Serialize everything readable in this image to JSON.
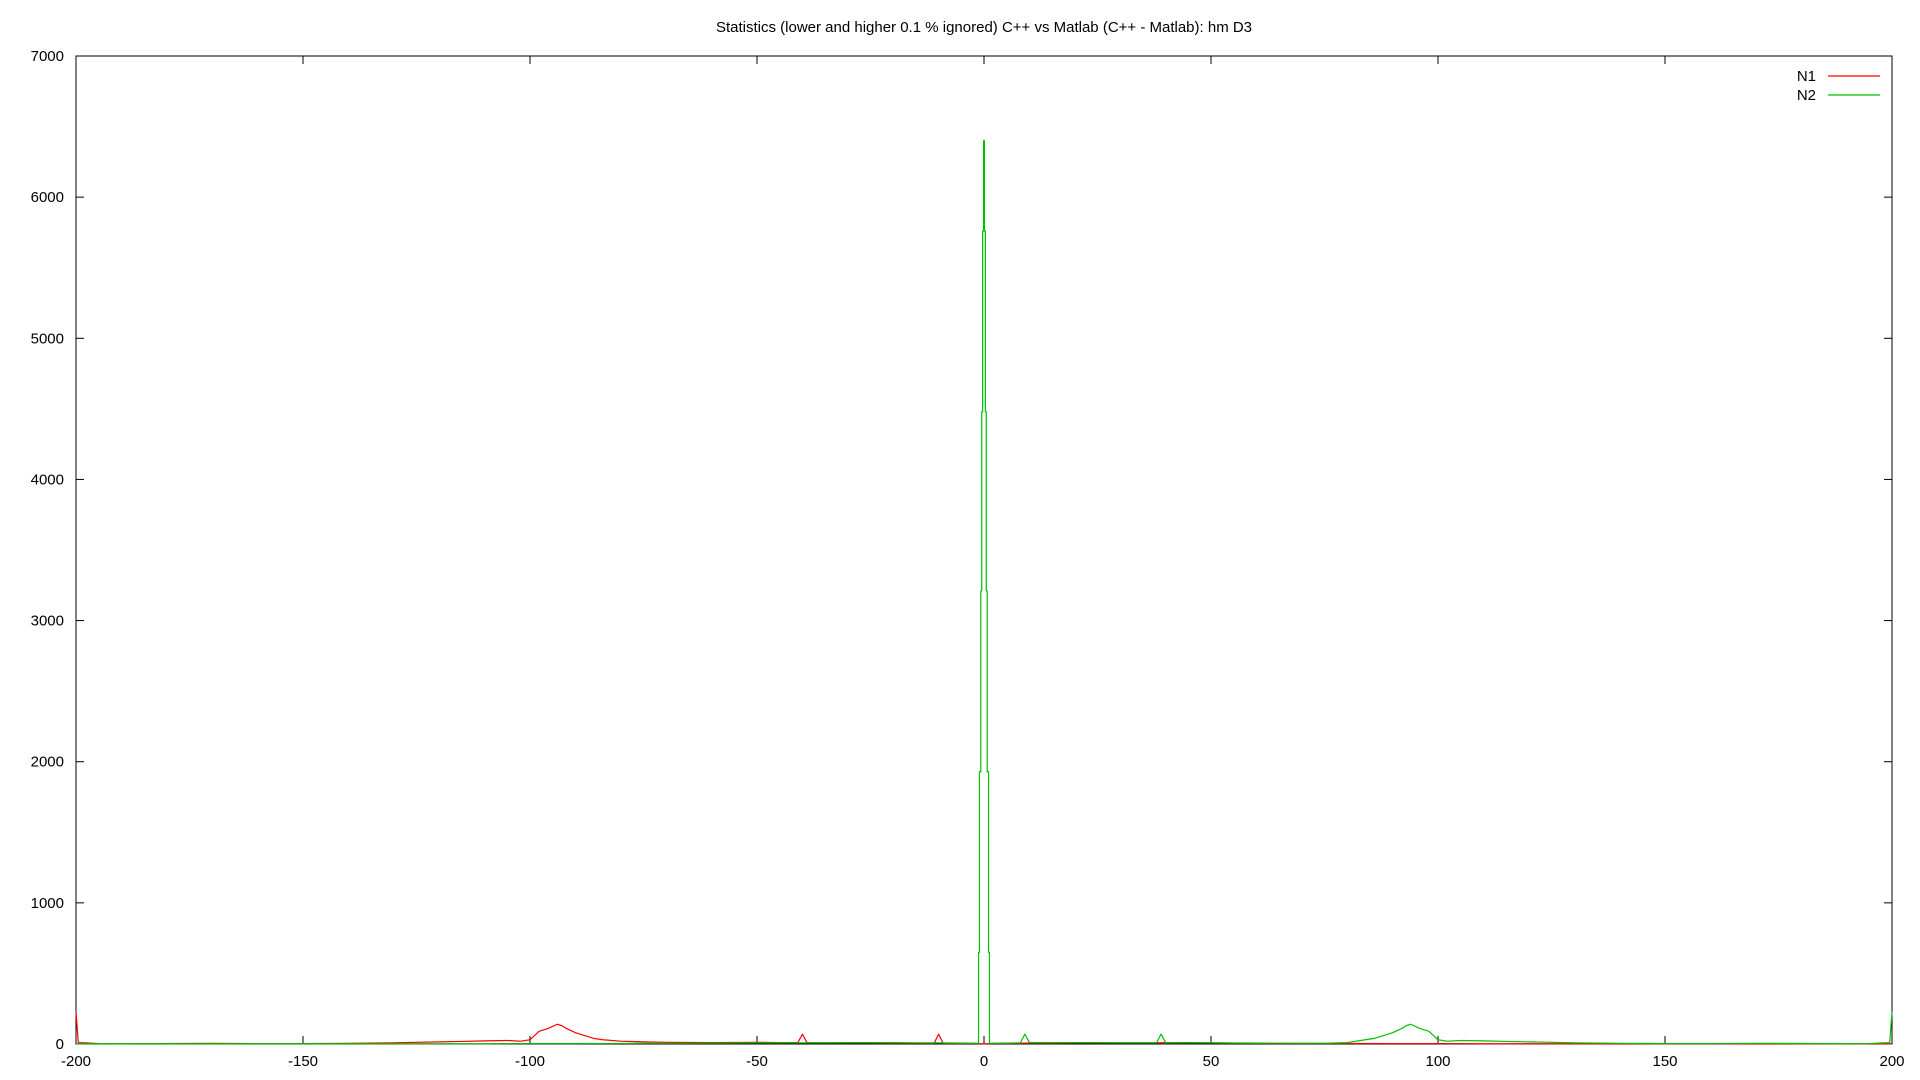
{
  "chart_data": {
    "type": "line",
    "title": "Statistics (lower and higher 0.1 % ignored) C++ vs Matlab (C++ - Matlab): hm D3",
    "xlabel": "",
    "ylabel": "",
    "xlim": [
      -200,
      200
    ],
    "ylim": [
      0,
      7000
    ],
    "xticks": [
      -200,
      -150,
      -100,
      -50,
      0,
      50,
      100,
      150,
      200
    ],
    "xtick_labels": [
      "-200",
      "-150",
      "-100",
      "-50",
      "0",
      "50",
      "100",
      "150",
      "200"
    ],
    "yticks": [
      0,
      1000,
      2000,
      3000,
      4000,
      5000,
      6000,
      7000
    ],
    "ytick_labels": [
      "0",
      "1000",
      "2000",
      "3000",
      "4000",
      "5000",
      "6000",
      "7000"
    ],
    "grid": false,
    "legend_position": "top-right",
    "series": [
      {
        "name": "N1",
        "color": "#ff0000",
        "points": [
          [
            -200,
            230
          ],
          [
            -199.5,
            10
          ],
          [
            -198,
            8
          ],
          [
            -196,
            5
          ],
          [
            -195,
            3
          ],
          [
            -190,
            2
          ],
          [
            -170,
            5
          ],
          [
            -160,
            3
          ],
          [
            -150,
            3
          ],
          [
            -140,
            5
          ],
          [
            -130,
            8
          ],
          [
            -125,
            12
          ],
          [
            -120,
            15
          ],
          [
            -115,
            18
          ],
          [
            -110,
            22
          ],
          [
            -105,
            25
          ],
          [
            -102,
            20
          ],
          [
            -100,
            30
          ],
          [
            -98,
            90
          ],
          [
            -96,
            110
          ],
          [
            -94,
            140
          ],
          [
            -93,
            130
          ],
          [
            -92,
            110
          ],
          [
            -90,
            80
          ],
          [
            -88,
            60
          ],
          [
            -86,
            40
          ],
          [
            -84,
            30
          ],
          [
            -80,
            20
          ],
          [
            -75,
            15
          ],
          [
            -70,
            12
          ],
          [
            -60,
            10
          ],
          [
            -50,
            12
          ],
          [
            -45,
            10
          ],
          [
            -41,
            10
          ],
          [
            -40,
            70
          ],
          [
            -39,
            10
          ],
          [
            -35,
            8
          ],
          [
            -30,
            8
          ],
          [
            -25,
            8
          ],
          [
            -20,
            6
          ],
          [
            -15,
            6
          ],
          [
            -11,
            5
          ],
          [
            -10,
            70
          ],
          [
            -9,
            5
          ],
          [
            -5,
            5
          ],
          [
            -2,
            5
          ],
          [
            -1,
            3
          ],
          [
            0,
            2
          ],
          [
            1,
            3
          ],
          [
            2,
            5
          ],
          [
            5,
            5
          ],
          [
            10,
            6
          ],
          [
            15,
            6
          ],
          [
            20,
            8
          ],
          [
            25,
            8
          ],
          [
            30,
            8
          ],
          [
            35,
            8
          ],
          [
            38,
            8
          ],
          [
            40,
            10
          ],
          [
            45,
            10
          ],
          [
            50,
            8
          ],
          [
            55,
            6
          ],
          [
            60,
            5
          ],
          [
            70,
            5
          ],
          [
            80,
            4
          ],
          [
            90,
            3
          ],
          [
            100,
            3
          ],
          [
            110,
            2
          ],
          [
            120,
            2
          ],
          [
            130,
            2
          ],
          [
            140,
            2
          ],
          [
            150,
            2
          ],
          [
            160,
            2
          ],
          [
            170,
            2
          ],
          [
            180,
            2
          ],
          [
            190,
            2
          ],
          [
            200,
            2
          ]
        ]
      },
      {
        "name": "N2",
        "color": "#00c000",
        "points": [
          [
            -200,
            2
          ],
          [
            -190,
            2
          ],
          [
            -180,
            2
          ],
          [
            -170,
            2
          ],
          [
            -160,
            2
          ],
          [
            -150,
            2
          ],
          [
            -140,
            2
          ],
          [
            -130,
            2
          ],
          [
            -120,
            2
          ],
          [
            -110,
            2
          ],
          [
            -100,
            3
          ],
          [
            -90,
            3
          ],
          [
            -80,
            4
          ],
          [
            -75,
            5
          ],
          [
            -70,
            5
          ],
          [
            -60,
            6
          ],
          [
            -50,
            8
          ],
          [
            -45,
            8
          ],
          [
            -40,
            8
          ],
          [
            -35,
            8
          ],
          [
            -30,
            10
          ],
          [
            -25,
            10
          ],
          [
            -20,
            10
          ],
          [
            -15,
            8
          ],
          [
            -10,
            8
          ],
          [
            -5,
            6
          ],
          [
            -2,
            5
          ],
          [
            -1.2,
            5
          ],
          [
            -1.2,
            650
          ],
          [
            -1,
            650
          ],
          [
            -1,
            1930
          ],
          [
            -0.7,
            1930
          ],
          [
            -0.7,
            3210
          ],
          [
            -0.5,
            3210
          ],
          [
            -0.5,
            4480
          ],
          [
            -0.3,
            4480
          ],
          [
            -0.3,
            5760
          ],
          [
            -0.1,
            5760
          ],
          [
            -0.1,
            6400
          ],
          [
            0.1,
            6400
          ],
          [
            0.1,
            5760
          ],
          [
            0.3,
            5760
          ],
          [
            0.3,
            4480
          ],
          [
            0.5,
            4480
          ],
          [
            0.5,
            3210
          ],
          [
            0.7,
            3210
          ],
          [
            0.7,
            1930
          ],
          [
            1,
            1930
          ],
          [
            1,
            650
          ],
          [
            1.2,
            650
          ],
          [
            1.2,
            5
          ],
          [
            2,
            5
          ],
          [
            5,
            6
          ],
          [
            8,
            8
          ],
          [
            9,
            70
          ],
          [
            10,
            10
          ],
          [
            15,
            10
          ],
          [
            20,
            10
          ],
          [
            25,
            10
          ],
          [
            30,
            8
          ],
          [
            35,
            8
          ],
          [
            38,
            8
          ],
          [
            39,
            70
          ],
          [
            40,
            10
          ],
          [
            45,
            8
          ],
          [
            50,
            8
          ],
          [
            60,
            6
          ],
          [
            70,
            5
          ],
          [
            75,
            5
          ],
          [
            80,
            10
          ],
          [
            84,
            30
          ],
          [
            86,
            40
          ],
          [
            88,
            60
          ],
          [
            90,
            80
          ],
          [
            92,
            110
          ],
          [
            93,
            130
          ],
          [
            94,
            140
          ],
          [
            96,
            110
          ],
          [
            98,
            90
          ],
          [
            100,
            30
          ],
          [
            102,
            20
          ],
          [
            105,
            25
          ],
          [
            110,
            22
          ],
          [
            115,
            18
          ],
          [
            120,
            15
          ],
          [
            125,
            12
          ],
          [
            130,
            8
          ],
          [
            140,
            5
          ],
          [
            150,
            3
          ],
          [
            160,
            3
          ],
          [
            170,
            5
          ],
          [
            190,
            2
          ],
          [
            195,
            3
          ],
          [
            196,
            5
          ],
          [
            198,
            8
          ],
          [
            199.5,
            10
          ],
          [
            200,
            230
          ]
        ]
      }
    ]
  }
}
